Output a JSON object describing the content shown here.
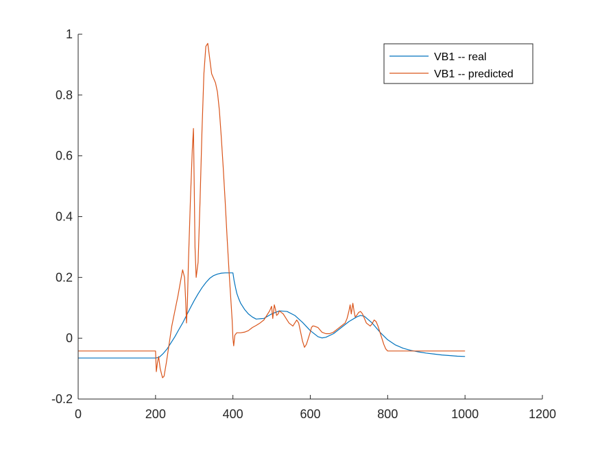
{
  "chart_data": {
    "type": "line",
    "title": "",
    "xlabel": "",
    "ylabel": "",
    "xlim": [
      0,
      1200
    ],
    "ylim": [
      -0.2,
      1.0
    ],
    "x_ticks": [
      0,
      200,
      400,
      600,
      800,
      1000,
      1200
    ],
    "x_tick_labels": [
      "0",
      "200",
      "400",
      "600",
      "800",
      "1000",
      "1200"
    ],
    "y_ticks": [
      -0.2,
      0,
      0.2,
      0.4,
      0.6,
      0.8,
      1.0
    ],
    "y_tick_labels": [
      "-0.2",
      "0",
      "0.2",
      "0.4",
      "0.6",
      "0.8",
      "1"
    ],
    "grid": false,
    "legend": {
      "position": "top-right"
    },
    "series": [
      {
        "name": "VB1 -- real",
        "color": "#0072BD",
        "x": [
          0,
          200,
          205,
          210,
          220,
          230,
          240,
          250,
          260,
          270,
          280,
          290,
          300,
          310,
          320,
          330,
          340,
          350,
          360,
          370,
          380,
          390,
          400,
          403,
          407,
          410,
          415,
          420,
          430,
          440,
          450,
          460,
          480,
          500,
          520,
          540,
          560,
          580,
          600,
          620,
          630,
          640,
          660,
          680,
          700,
          720,
          730,
          740,
          760,
          780,
          800,
          820,
          840,
          860,
          880,
          900,
          920,
          940,
          960,
          980,
          1000
        ],
        "y": [
          -0.065,
          -0.065,
          -0.064,
          -0.062,
          -0.05,
          -0.035,
          -0.015,
          0.005,
          0.028,
          0.05,
          0.075,
          0.1,
          0.124,
          0.146,
          0.166,
          0.183,
          0.197,
          0.206,
          0.211,
          0.214,
          0.215,
          0.215,
          0.215,
          0.19,
          0.165,
          0.148,
          0.13,
          0.115,
          0.095,
          0.08,
          0.07,
          0.063,
          0.065,
          0.08,
          0.09,
          0.088,
          0.075,
          0.052,
          0.025,
          0.005,
          0.001,
          0.003,
          0.015,
          0.035,
          0.055,
          0.07,
          0.075,
          0.072,
          0.05,
          0.02,
          -0.005,
          -0.022,
          -0.033,
          -0.04,
          -0.045,
          -0.049,
          -0.052,
          -0.055,
          -0.057,
          -0.059,
          -0.06
        ]
      },
      {
        "name": "VB1 -- predicted",
        "color": "#D95319",
        "x": [
          0,
          200,
          202,
          205,
          208,
          212,
          218,
          222,
          228,
          235,
          242,
          250,
          258,
          265,
          270,
          275,
          278,
          280,
          282,
          285,
          290,
          295,
          298,
          300,
          302,
          305,
          310,
          315,
          320,
          325,
          330,
          335,
          340,
          345,
          350,
          355,
          360,
          365,
          370,
          375,
          380,
          385,
          390,
          395,
          398,
          400,
          402,
          405,
          410,
          420,
          430,
          440,
          450,
          460,
          470,
          480,
          490,
          495,
          500,
          503,
          507,
          510,
          513,
          517,
          520,
          525,
          530,
          535,
          540,
          545,
          550,
          555,
          560,
          565,
          570,
          575,
          580,
          585,
          590,
          595,
          600,
          603,
          606,
          610,
          620,
          630,
          640,
          650,
          660,
          670,
          680,
          690,
          695,
          700,
          703,
          706,
          710,
          713,
          716,
          720,
          725,
          730,
          735,
          740,
          745,
          750,
          755,
          760,
          765,
          770,
          775,
          780,
          785,
          790,
          795,
          800,
          805,
          820,
          850,
          900,
          950,
          1000
        ],
        "y": [
          -0.042,
          -0.042,
          -0.11,
          -0.08,
          -0.06,
          -0.1,
          -0.13,
          -0.125,
          -0.08,
          -0.02,
          0.04,
          0.09,
          0.14,
          0.19,
          0.225,
          0.2,
          0.12,
          0.05,
          0.1,
          0.25,
          0.45,
          0.62,
          0.69,
          0.5,
          0.3,
          0.2,
          0.25,
          0.45,
          0.68,
          0.87,
          0.96,
          0.97,
          0.92,
          0.87,
          0.855,
          0.84,
          0.81,
          0.75,
          0.66,
          0.56,
          0.45,
          0.33,
          0.22,
          0.12,
          0.06,
          0.0,
          -0.025,
          0.01,
          0.018,
          0.018,
          0.02,
          0.025,
          0.035,
          0.042,
          0.05,
          0.06,
          0.08,
          0.09,
          0.105,
          0.065,
          0.11,
          0.095,
          0.075,
          0.08,
          0.09,
          0.085,
          0.08,
          0.07,
          0.06,
          0.05,
          0.045,
          0.04,
          0.05,
          0.06,
          0.05,
          0.02,
          -0.01,
          -0.03,
          -0.02,
          0.0,
          0.02,
          0.035,
          0.04,
          0.04,
          0.035,
          0.02,
          0.015,
          0.015,
          0.02,
          0.03,
          0.04,
          0.05,
          0.065,
          0.09,
          0.11,
          0.08,
          0.115,
          0.09,
          0.07,
          0.075,
          0.085,
          0.088,
          0.08,
          0.065,
          0.05,
          0.045,
          0.04,
          0.048,
          0.06,
          0.055,
          0.04,
          0.02,
          0.0,
          -0.02,
          -0.035,
          -0.042,
          -0.042,
          -0.042,
          -0.042,
          -0.042,
          -0.042,
          -0.042
        ]
      }
    ]
  }
}
